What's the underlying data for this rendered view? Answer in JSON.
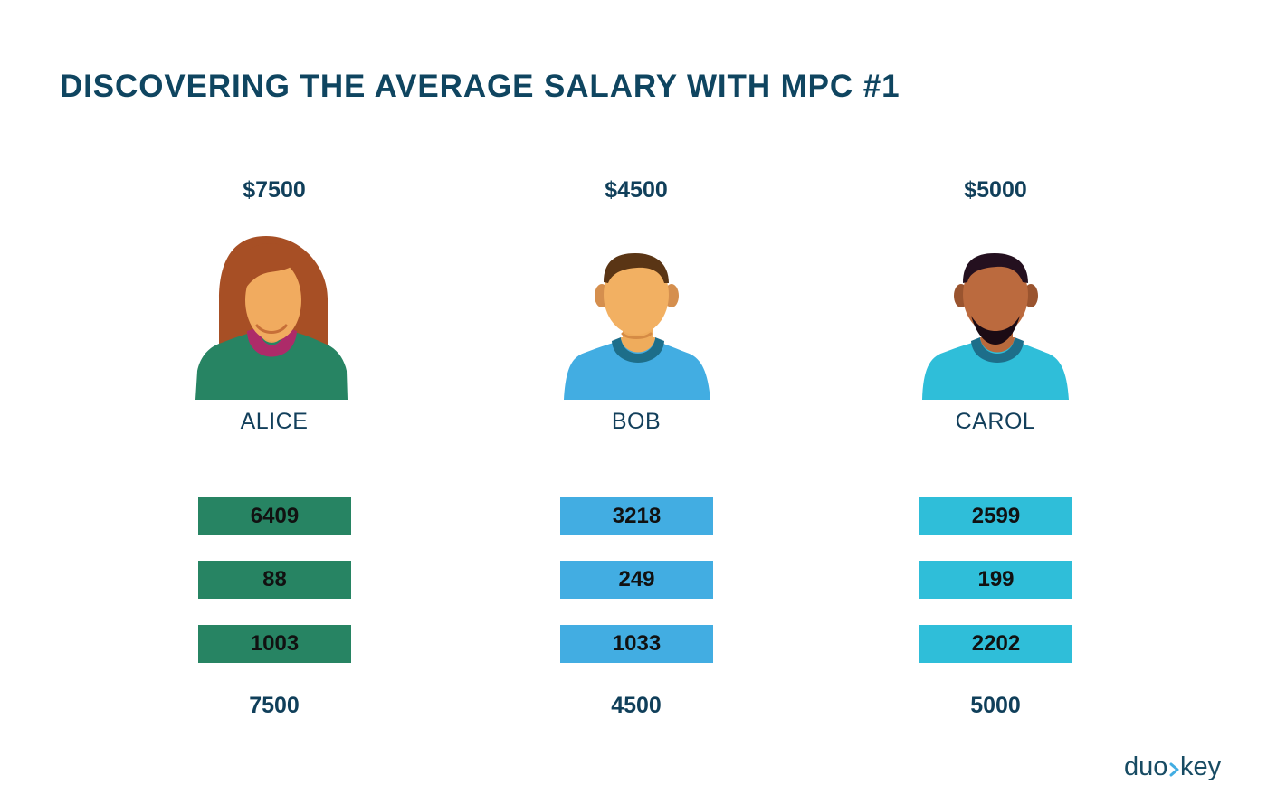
{
  "title": "DISCOVERING THE AVERAGE SALARY WITH MPC #1",
  "people": [
    {
      "name": "ALICE",
      "salary": "$7500",
      "shares": [
        "6409",
        "88",
        "1003"
      ],
      "total": "7500",
      "color": "#278463"
    },
    {
      "name": "BOB",
      "salary": "$4500",
      "shares": [
        "3218",
        "249",
        "1033"
      ],
      "total": "4500",
      "color": "#42ade2"
    },
    {
      "name": "CAROL",
      "salary": "$5000",
      "shares": [
        "2599",
        "199",
        "2202"
      ],
      "total": "5000",
      "color": "#2fbed9"
    }
  ],
  "brand": {
    "logo_text": "duokey"
  }
}
